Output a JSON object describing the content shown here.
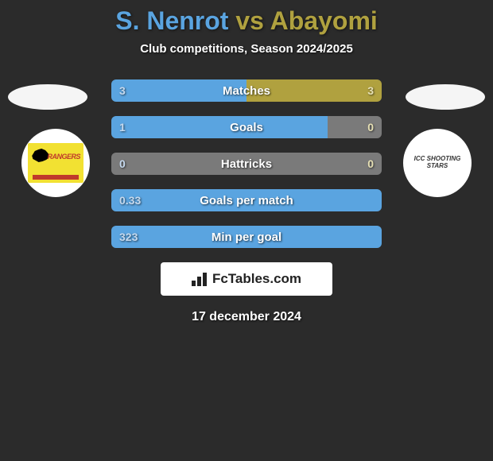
{
  "title": {
    "player_a": "S. Nenrot",
    "vs": "vs",
    "player_b": "Abayomi"
  },
  "subtitle": "Club competitions, Season 2024/2025",
  "colors": {
    "player_a": "#5aa4e0",
    "player_b": "#b0a13f",
    "neutral": "#7a7a7a",
    "bar_bg": "#3a3a3a"
  },
  "club_left": {
    "name": "Rangers",
    "label": "RANGERS"
  },
  "club_right": {
    "name": "ICC Shooting Stars",
    "label": "ICC SHOOTING STARS"
  },
  "stats": [
    {
      "label": "Matches",
      "a": "3",
      "b": "3",
      "a_pct": 50,
      "b_pct": 50
    },
    {
      "label": "Goals",
      "a": "1",
      "b": "0",
      "a_pct": 80,
      "b_pct": 20,
      "b_neutral": true
    },
    {
      "label": "Hattricks",
      "a": "0",
      "b": "0",
      "a_pct": 50,
      "b_pct": 50,
      "a_neutral": true,
      "b_neutral": true
    },
    {
      "label": "Goals per match",
      "a": "0.33",
      "b": "",
      "a_pct": 100,
      "b_pct": 0
    },
    {
      "label": "Min per goal",
      "a": "323",
      "b": "",
      "a_pct": 100,
      "b_pct": 0
    }
  ],
  "footer": {
    "brand": "FcTables.com"
  },
  "date": "17 december 2024"
}
